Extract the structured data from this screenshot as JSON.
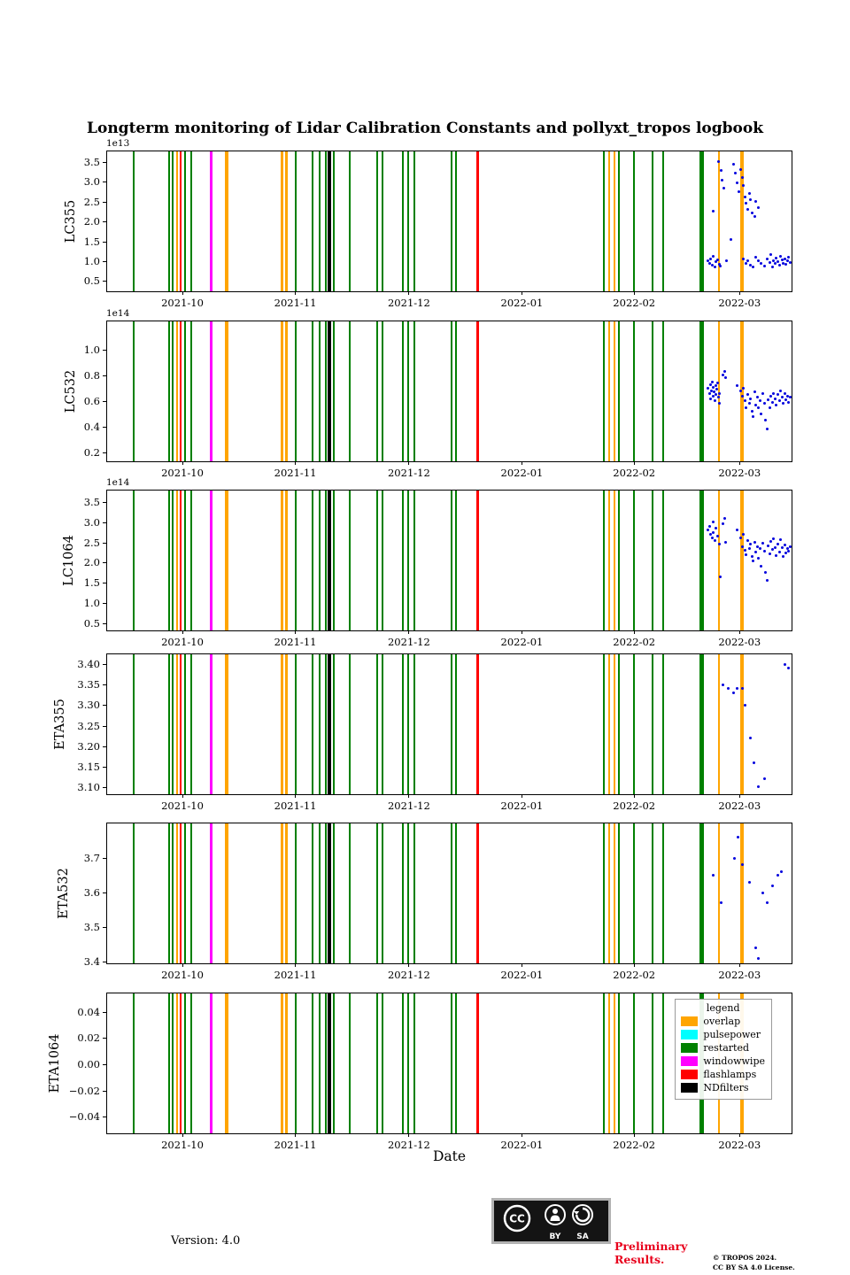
{
  "title": "Longterm monitoring of Lidar Calibration Constants and pollyxt_tropos logbook",
  "chart_data": {
    "type": "scatter",
    "xlabel": "Date",
    "xticks": [
      {
        "label": "2021-10",
        "x": 0.11
      },
      {
        "label": "2021-11",
        "x": 0.275
      },
      {
        "label": "2021-12",
        "x": 0.441
      },
      {
        "label": "2022-01",
        "x": 0.606
      },
      {
        "label": "2022-02",
        "x": 0.77
      },
      {
        "label": "2022-03",
        "x": 0.924
      }
    ],
    "colors": {
      "overlap": "#ffa500",
      "pulsepower": "#00ffff",
      "restarted": "#008000",
      "windowwipe": "#ff00ff",
      "flashlamps": "#ff0000",
      "NDfilters": "#000000",
      "scatter": "#0000dd"
    },
    "legend": {
      "title": "legend",
      "entries": [
        {
          "label": "overlap"
        },
        {
          "label": "pulsepower"
        },
        {
          "label": "restarted"
        },
        {
          "label": "windowwipe"
        },
        {
          "label": "flashlamps"
        },
        {
          "label": "NDfilters"
        }
      ]
    },
    "event_lines": [
      {
        "x": 0.039,
        "type": "restarted",
        "w": 2
      },
      {
        "x": 0.09,
        "type": "restarted",
        "w": 2
      },
      {
        "x": 0.096,
        "type": "restarted",
        "w": 2
      },
      {
        "x": 0.102,
        "type": "overlap",
        "w": 2
      },
      {
        "x": 0.108,
        "type": "flashlamps",
        "w": 2
      },
      {
        "x": 0.114,
        "type": "restarted",
        "w": 2
      },
      {
        "x": 0.123,
        "type": "restarted",
        "w": 2
      },
      {
        "x": 0.152,
        "type": "windowwipe",
        "w": 3
      },
      {
        "x": 0.175,
        "type": "overlap",
        "w": 4
      },
      {
        "x": 0.256,
        "type": "overlap",
        "w": 3
      },
      {
        "x": 0.262,
        "type": "overlap",
        "w": 3
      },
      {
        "x": 0.276,
        "type": "restarted",
        "w": 2
      },
      {
        "x": 0.3,
        "type": "restarted",
        "w": 2
      },
      {
        "x": 0.311,
        "type": "restarted",
        "w": 2
      },
      {
        "x": 0.32,
        "type": "restarted",
        "w": 2
      },
      {
        "x": 0.325,
        "type": "NDfilters",
        "w": 4
      },
      {
        "x": 0.331,
        "type": "restarted",
        "w": 2
      },
      {
        "x": 0.354,
        "type": "restarted",
        "w": 2
      },
      {
        "x": 0.394,
        "type": "restarted",
        "w": 2
      },
      {
        "x": 0.402,
        "type": "restarted",
        "w": 2
      },
      {
        "x": 0.432,
        "type": "restarted",
        "w": 2
      },
      {
        "x": 0.44,
        "type": "restarted",
        "w": 2
      },
      {
        "x": 0.449,
        "type": "restarted",
        "w": 2
      },
      {
        "x": 0.503,
        "type": "restarted",
        "w": 2
      },
      {
        "x": 0.51,
        "type": "restarted",
        "w": 2
      },
      {
        "x": 0.542,
        "type": "flashlamps",
        "w": 3
      },
      {
        "x": 0.726,
        "type": "restarted",
        "w": 2
      },
      {
        "x": 0.734,
        "type": "overlap",
        "w": 2
      },
      {
        "x": 0.741,
        "type": "overlap",
        "w": 2
      },
      {
        "x": 0.748,
        "type": "restarted",
        "w": 2
      },
      {
        "x": 0.77,
        "type": "restarted",
        "w": 2
      },
      {
        "x": 0.797,
        "type": "restarted",
        "w": 2
      },
      {
        "x": 0.812,
        "type": "restarted",
        "w": 2
      },
      {
        "x": 0.869,
        "type": "restarted",
        "w": 5
      },
      {
        "x": 0.894,
        "type": "overlap",
        "w": 2
      },
      {
        "x": 0.928,
        "type": "overlap",
        "w": 4
      }
    ],
    "panels": [
      {
        "ylabel": "LC355",
        "offset": "1e13",
        "ylim": [
          0.19,
          3.77
        ],
        "yticks": [
          0.5,
          1.0,
          1.5,
          2.0,
          2.5,
          3.0,
          3.5
        ],
        "ytick_labels": [
          "0.5",
          "1.0",
          "1.5",
          "2.0",
          "2.5",
          "3.0",
          "3.5"
        ],
        "scatter": [
          [
            0.893,
            3.52
          ],
          [
            0.897,
            3.3
          ],
          [
            0.899,
            3.05
          ],
          [
            0.901,
            2.85
          ],
          [
            0.885,
            2.25
          ],
          [
            0.915,
            3.45
          ],
          [
            0.918,
            3.22
          ],
          [
            0.92,
            2.97
          ],
          [
            0.923,
            2.76
          ],
          [
            0.925,
            3.32
          ],
          [
            0.928,
            3.1
          ],
          [
            0.93,
            2.9
          ],
          [
            0.932,
            2.62
          ],
          [
            0.934,
            2.46
          ],
          [
            0.936,
            2.31
          ],
          [
            0.938,
            2.71
          ],
          [
            0.94,
            2.55
          ],
          [
            0.943,
            2.21
          ],
          [
            0.946,
            2.12
          ],
          [
            0.948,
            2.5
          ],
          [
            0.951,
            2.35
          ],
          [
            0.878,
            1.0
          ],
          [
            0.88,
            0.94
          ],
          [
            0.882,
            1.06
          ],
          [
            0.884,
            0.9
          ],
          [
            0.886,
            1.11
          ],
          [
            0.888,
            0.85
          ],
          [
            0.89,
            0.98
          ],
          [
            0.892,
            1.03
          ],
          [
            0.894,
            0.92
          ],
          [
            0.896,
            0.87
          ],
          [
            0.905,
            1.0
          ],
          [
            0.912,
            1.55
          ],
          [
            0.93,
            1.05
          ],
          [
            0.933,
            0.95
          ],
          [
            0.936,
            1.01
          ],
          [
            0.94,
            0.9
          ],
          [
            0.944,
            0.84
          ],
          [
            0.948,
            1.1
          ],
          [
            0.952,
            1.0
          ],
          [
            0.956,
            0.93
          ],
          [
            0.96,
            0.88
          ],
          [
            0.964,
            1.06
          ],
          [
            0.968,
            0.96
          ],
          [
            0.97,
            1.16
          ],
          [
            0.972,
            0.86
          ],
          [
            0.974,
            1.01
          ],
          [
            0.976,
            0.94
          ],
          [
            0.978,
            1.08
          ],
          [
            0.98,
            0.98
          ],
          [
            0.982,
            0.89
          ],
          [
            0.984,
            1.12
          ],
          [
            0.986,
            1.02
          ],
          [
            0.988,
            0.95
          ],
          [
            0.99,
            1.06
          ],
          [
            0.992,
            0.91
          ],
          [
            0.994,
            1.0
          ],
          [
            0.996,
            1.1
          ],
          [
            0.998,
            0.97
          ]
        ]
      },
      {
        "ylabel": "LC532",
        "offset": "1e14",
        "ylim": [
          0.117,
          1.22
        ],
        "yticks": [
          0.2,
          0.4,
          0.6,
          0.8,
          1.0
        ],
        "ytick_labels": [
          "0.2",
          "0.4",
          "0.6",
          "0.8",
          "1.0"
        ],
        "scatter": [
          [
            0.878,
            0.7
          ],
          [
            0.88,
            0.66
          ],
          [
            0.881,
            0.73
          ],
          [
            0.882,
            0.62
          ],
          [
            0.883,
            0.68
          ],
          [
            0.884,
            0.75
          ],
          [
            0.885,
            0.64
          ],
          [
            0.886,
            0.71
          ],
          [
            0.887,
            0.67
          ],
          [
            0.888,
            0.6
          ],
          [
            0.889,
            0.72
          ],
          [
            0.89,
            0.65
          ],
          [
            0.891,
            0.69
          ],
          [
            0.892,
            0.74
          ],
          [
            0.893,
            0.63
          ],
          [
            0.894,
            0.58
          ],
          [
            0.895,
            0.66
          ],
          [
            0.9,
            0.8
          ],
          [
            0.902,
            0.83
          ],
          [
            0.904,
            0.78
          ],
          [
            0.92,
            0.72
          ],
          [
            0.925,
            0.68
          ],
          [
            0.928,
            0.64
          ],
          [
            0.93,
            0.7
          ],
          [
            0.932,
            0.6
          ],
          [
            0.934,
            0.55
          ],
          [
            0.936,
            0.65
          ],
          [
            0.938,
            0.58
          ],
          [
            0.94,
            0.62
          ],
          [
            0.942,
            0.52
          ],
          [
            0.944,
            0.48
          ],
          [
            0.946,
            0.67
          ],
          [
            0.948,
            0.57
          ],
          [
            0.95,
            0.63
          ],
          [
            0.952,
            0.55
          ],
          [
            0.954,
            0.6
          ],
          [
            0.956,
            0.5
          ],
          [
            0.958,
            0.66
          ],
          [
            0.96,
            0.58
          ],
          [
            0.962,
            0.45
          ],
          [
            0.964,
            0.38
          ],
          [
            0.966,
            0.61
          ],
          [
            0.968,
            0.55
          ],
          [
            0.97,
            0.64
          ],
          [
            0.972,
            0.59
          ],
          [
            0.974,
            0.66
          ],
          [
            0.976,
            0.62
          ],
          [
            0.978,
            0.57
          ],
          [
            0.98,
            0.65
          ],
          [
            0.982,
            0.6
          ],
          [
            0.984,
            0.68
          ],
          [
            0.986,
            0.63
          ],
          [
            0.988,
            0.58
          ],
          [
            0.99,
            0.66
          ],
          [
            0.992,
            0.61
          ],
          [
            0.994,
            0.64
          ],
          [
            0.996,
            0.59
          ],
          [
            0.998,
            0.63
          ]
        ]
      },
      {
        "ylabel": "LC1064",
        "offset": "1e14",
        "ylim": [
          0.28,
          3.78
        ],
        "yticks": [
          0.5,
          1.0,
          1.5,
          2.0,
          2.5,
          3.0,
          3.5
        ],
        "ytick_labels": [
          "0.5",
          "1.0",
          "1.5",
          "2.0",
          "2.5",
          "3.0",
          "3.5"
        ],
        "scatter": [
          [
            0.878,
            2.8
          ],
          [
            0.88,
            2.9
          ],
          [
            0.882,
            2.7
          ],
          [
            0.884,
            2.6
          ],
          [
            0.885,
            3.0
          ],
          [
            0.886,
            2.75
          ],
          [
            0.888,
            2.55
          ],
          [
            0.89,
            2.85
          ],
          [
            0.892,
            2.65
          ],
          [
            0.894,
            2.45
          ],
          [
            0.896,
            1.65
          ],
          [
            0.9,
            2.95
          ],
          [
            0.902,
            3.1
          ],
          [
            0.904,
            2.5
          ],
          [
            0.92,
            2.8
          ],
          [
            0.925,
            2.6
          ],
          [
            0.928,
            2.4
          ],
          [
            0.93,
            2.7
          ],
          [
            0.932,
            2.3
          ],
          [
            0.934,
            2.2
          ],
          [
            0.936,
            2.55
          ],
          [
            0.938,
            2.35
          ],
          [
            0.94,
            2.45
          ],
          [
            0.942,
            2.15
          ],
          [
            0.944,
            2.05
          ],
          [
            0.946,
            2.5
          ],
          [
            0.948,
            2.25
          ],
          [
            0.95,
            2.4
          ],
          [
            0.952,
            2.1
          ],
          [
            0.954,
            2.35
          ],
          [
            0.956,
            1.9
          ],
          [
            0.958,
            2.48
          ],
          [
            0.96,
            2.28
          ],
          [
            0.962,
            1.75
          ],
          [
            0.964,
            1.55
          ],
          [
            0.966,
            2.42
          ],
          [
            0.968,
            2.22
          ],
          [
            0.97,
            2.52
          ],
          [
            0.972,
            2.32
          ],
          [
            0.974,
            2.58
          ],
          [
            0.976,
            2.38
          ],
          [
            0.978,
            2.18
          ],
          [
            0.98,
            2.46
          ],
          [
            0.982,
            2.26
          ],
          [
            0.984,
            2.56
          ],
          [
            0.986,
            2.36
          ],
          [
            0.988,
            2.16
          ],
          [
            0.99,
            2.44
          ],
          [
            0.992,
            2.24
          ],
          [
            0.994,
            2.34
          ],
          [
            0.996,
            2.28
          ],
          [
            0.998,
            2.4
          ]
        ]
      },
      {
        "ylabel": "ETA355",
        "offset": "",
        "ylim": [
          3.078,
          3.424
        ],
        "yticks": [
          3.1,
          3.15,
          3.2,
          3.25,
          3.3,
          3.35,
          3.4
        ],
        "ytick_labels": [
          "3.10",
          "3.15",
          "3.20",
          "3.25",
          "3.30",
          "3.35",
          "3.40"
        ],
        "scatter": [
          [
            0.9,
            3.35
          ],
          [
            0.908,
            3.34
          ],
          [
            0.915,
            3.33
          ],
          [
            0.92,
            3.34
          ],
          [
            0.928,
            3.34
          ],
          [
            0.932,
            3.3
          ],
          [
            0.94,
            3.22
          ],
          [
            0.945,
            3.16
          ],
          [
            0.952,
            3.1
          ],
          [
            0.96,
            3.12
          ],
          [
            0.99,
            3.4
          ],
          [
            0.995,
            3.39
          ]
        ]
      },
      {
        "ylabel": "ETA532",
        "offset": "",
        "ylim": [
          3.39,
          3.8
        ],
        "yticks": [
          3.4,
          3.5,
          3.6,
          3.7
        ],
        "ytick_labels": [
          "3.4",
          "3.5",
          "3.6",
          "3.7"
        ],
        "scatter": [
          [
            0.885,
            3.65
          ],
          [
            0.897,
            3.57
          ],
          [
            0.917,
            3.7
          ],
          [
            0.922,
            3.76
          ],
          [
            0.928,
            3.68
          ],
          [
            0.938,
            3.63
          ],
          [
            0.948,
            3.44
          ],
          [
            0.952,
            3.41
          ],
          [
            0.958,
            3.6
          ],
          [
            0.965,
            3.57
          ],
          [
            0.972,
            3.62
          ],
          [
            0.98,
            3.65
          ],
          [
            0.985,
            3.66
          ]
        ]
      },
      {
        "ylabel": "ETA1064",
        "offset": "",
        "ylim": [
          -0.054,
          0.054
        ],
        "yticks": [
          -0.04,
          -0.02,
          0.0,
          0.02,
          0.04
        ],
        "ytick_labels": [
          "−0.04",
          "−0.02",
          "0.00",
          "0.02",
          "0.04"
        ],
        "scatter": []
      }
    ]
  },
  "footer": {
    "version": "Version: 4.0",
    "preliminary": "Preliminary Results.",
    "copyright_line1": "© TROPOS 2024.",
    "copyright_line2": "CC BY SA 4.0 License.",
    "badge_cc": "CC",
    "badge_by": "BY",
    "badge_sa": "SA"
  }
}
